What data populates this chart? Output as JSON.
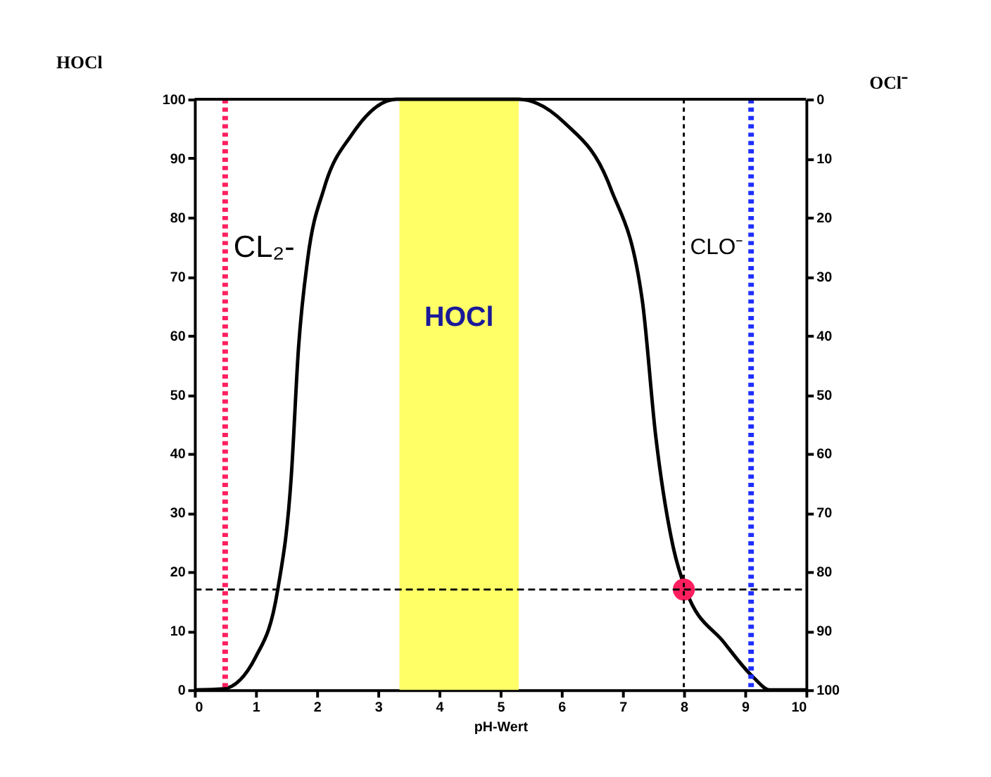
{
  "chart_data": {
    "type": "line",
    "xlabel": "pH-Wert",
    "ylabel": "HOCl",
    "y2label": "OCl⁻",
    "xlim": [
      0,
      10
    ],
    "xticks": [
      0,
      1,
      2,
      3,
      4,
      5,
      6,
      7,
      8,
      9,
      10
    ],
    "ylim": [
      0,
      100
    ],
    "yticks": [
      0,
      10,
      20,
      30,
      40,
      50,
      60,
      70,
      80,
      90,
      100
    ],
    "y2lim": [
      100,
      0
    ],
    "y2ticks": [
      0,
      10,
      20,
      30,
      40,
      50,
      60,
      70,
      80,
      90,
      100
    ],
    "series": [
      {
        "color": "#000000",
        "x": [
          0,
          0.47,
          1.0,
          1.36,
          1.58,
          1.7,
          1.85,
          2.12,
          2.57,
          3.3,
          5.3,
          6.05,
          6.8,
          7.32,
          7.54,
          7.83,
          8.03,
          8.66,
          9.15,
          9.4,
          10
        ],
        "values": [
          0,
          0.2,
          5.6,
          17,
          36,
          58,
          73,
          85,
          94,
          100,
          100,
          96,
          85,
          66,
          43,
          24,
          17,
          8,
          2,
          0,
          0
        ]
      },
      {
        "type": "scatter",
        "marker": "circle",
        "color": "#ff1f5f",
        "x": [
          8
        ],
        "values": [
          17
        ]
      }
    ],
    "marker": "none",
    "line_style": "solid",
    "grid": false,
    "ref_lines": [
      {
        "axis": "x",
        "value": 0.5,
        "color": "#ff1f5f",
        "line_style": "dotted",
        "label": "CL₂-"
      },
      {
        "axis": "x",
        "value": 9.1,
        "color": "#1f2fff",
        "line_style": "dotted",
        "label": "CLO⁻"
      },
      {
        "axis": "x",
        "value": 8,
        "color": "#000000",
        "line_style": "dotted"
      },
      {
        "axis": "y",
        "value": 17,
        "color": "#000000",
        "line_style": "dashed"
      }
    ],
    "bands": [
      {
        "axis": "x",
        "from": 3.35,
        "to": 5.3,
        "label": "HOCl",
        "color": "#ffff66"
      }
    ]
  }
}
